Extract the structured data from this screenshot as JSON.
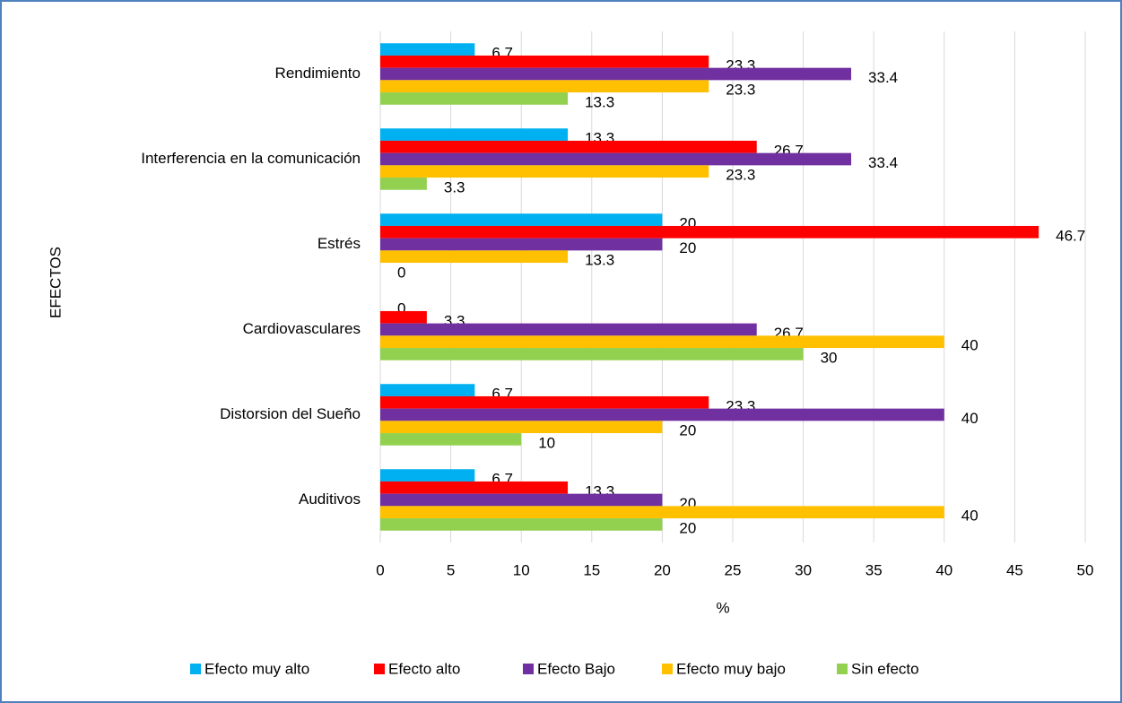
{
  "chart_data": {
    "type": "barh",
    "categories": [
      "Rendimiento",
      "Interferencia en la comunicación",
      "Estrés",
      "Cardiovasculares",
      "Distorsion del Sueño",
      "Auditivos"
    ],
    "series": [
      {
        "name": "Efecto muy alto",
        "color": "#00b0f0",
        "values": [
          6.7,
          13.3,
          20,
          0,
          6.7,
          6.7
        ]
      },
      {
        "name": "Efecto alto",
        "color": "#ff0000",
        "values": [
          23.3,
          26.7,
          46.7,
          3.3,
          23.3,
          13.3
        ]
      },
      {
        "name": "Efecto Bajo",
        "color": "#7030a0",
        "values": [
          33.4,
          33.4,
          20,
          26.7,
          40,
          20
        ]
      },
      {
        "name": "Efecto muy bajo",
        "color": "#ffc000",
        "values": [
          23.3,
          23.3,
          13.3,
          40,
          20,
          40
        ]
      },
      {
        "name": "Sin efecto",
        "color": "#92d050",
        "values": [
          13.3,
          3.3,
          0,
          30,
          10,
          20
        ]
      }
    ],
    "xlabel": "%",
    "ylabel": "EFECTOS",
    "xlim": [
      0,
      50
    ],
    "xticks": [
      0,
      5,
      10,
      15,
      20,
      25,
      30,
      35,
      40,
      45,
      50
    ],
    "grid": true,
    "legend": "bottom"
  }
}
